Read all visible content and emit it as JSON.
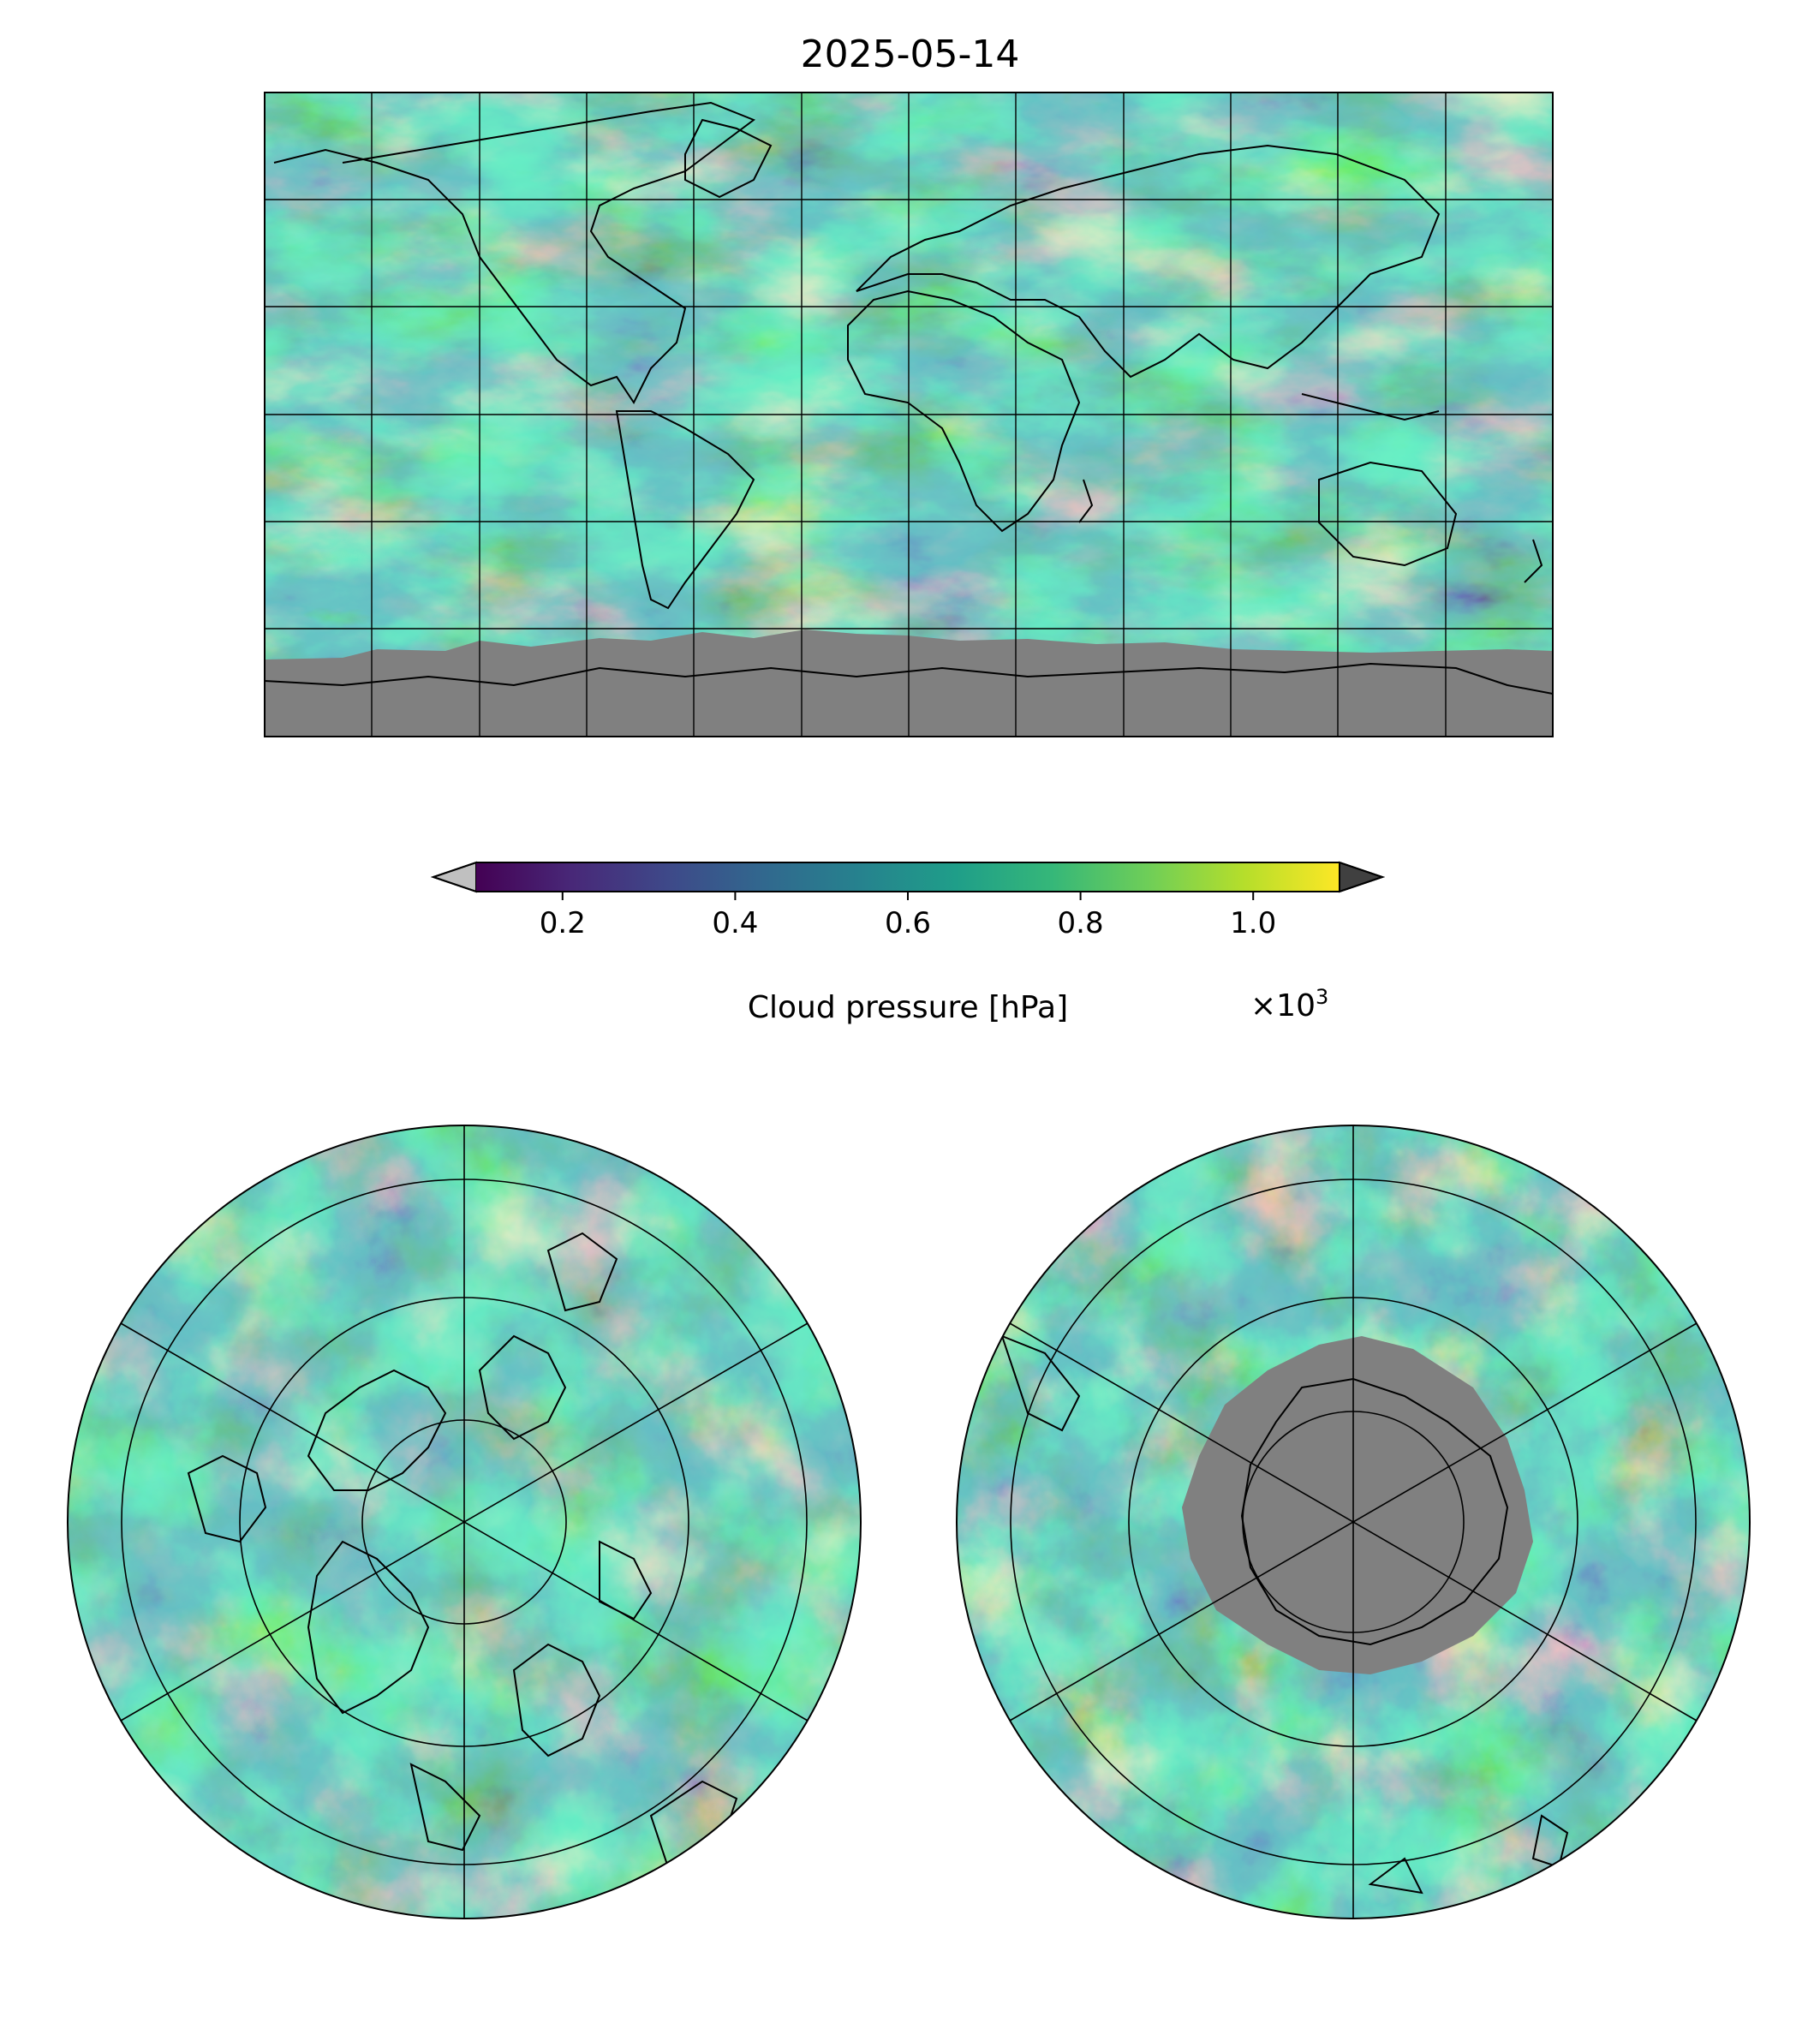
{
  "figure": {
    "title": "2025-05-14"
  },
  "colorbar": {
    "label": "Cloud pressure [hPa]",
    "multiplier_text": "×10",
    "multiplier_exponent": "3",
    "ticks": [
      "0.2",
      "0.4",
      "0.6",
      "0.8",
      "1.0"
    ],
    "tick_values": [
      0.2,
      0.4,
      0.6,
      0.8,
      1.0
    ],
    "range": [
      0.1,
      1.1
    ],
    "extend": "both",
    "under_color": "#c0c0c0",
    "over_color": "#404040",
    "colormap": "viridis",
    "colormap_stops": [
      "#440154",
      "#482878",
      "#3e4989",
      "#31688e",
      "#26828e",
      "#1f9e89",
      "#35b779",
      "#6ece58",
      "#b5de2b",
      "#fde725"
    ]
  },
  "chart_data": [
    {
      "type": "heatmap",
      "panel": "global map (plate carrée)",
      "variable": "Cloud pressure",
      "units": "hPa",
      "date": "2025-05-14",
      "missing_color": "#808080",
      "missing_region": "Antarctica / south of about 60°S",
      "graticule": true,
      "coastlines": true
    },
    {
      "type": "heatmap",
      "panel": "north polar stereographic",
      "variable": "Cloud pressure",
      "units": "hPa",
      "graticule": true,
      "coastlines": true
    },
    {
      "type": "heatmap",
      "panel": "south polar stereographic",
      "variable": "Cloud pressure",
      "units": "hPa",
      "missing_color": "#808080",
      "missing_region": "Antarctic interior",
      "graticule": true,
      "coastlines": true
    }
  ]
}
